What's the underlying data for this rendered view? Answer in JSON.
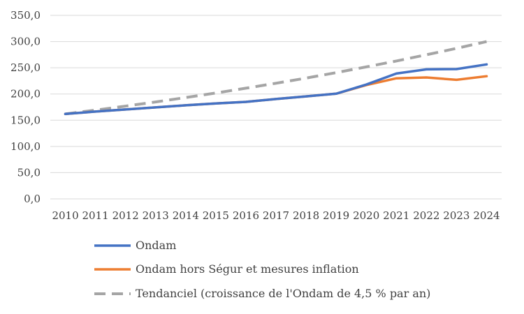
{
  "chart_data": {
    "type": "line",
    "title": "",
    "xlabel": "",
    "ylabel": "",
    "categories": [
      "2010",
      "2011",
      "2012",
      "2013",
      "2014",
      "2015",
      "2016",
      "2017",
      "2018",
      "2019",
      "2020",
      "2021",
      "2022",
      "2023",
      "2024"
    ],
    "ylim": [
      0,
      350
    ],
    "yticks": [
      0,
      50,
      100,
      150,
      200,
      250,
      300,
      350
    ],
    "ytick_labels": [
      "0,0",
      "50,0",
      "100,0",
      "150,0",
      "200,0",
      "250,0",
      "300,0",
      "350,0"
    ],
    "grid": "horizontal",
    "legend_position": "bottom",
    "series": [
      {
        "name": "Ondam",
        "color": "#4472C4",
        "style": "solid",
        "values": [
          162.0,
          166.5,
          170.5,
          174.5,
          178.5,
          182.0,
          185.0,
          190.5,
          195.5,
          200.5,
          218.0,
          239.0,
          247.0,
          247.5,
          256.5
        ]
      },
      {
        "name": "Ondam hors Ségur et mesures inflation",
        "color": "#ED7D31",
        "style": "solid",
        "values": [
          162.0,
          166.5,
          170.5,
          174.5,
          178.5,
          182.0,
          185.0,
          190.5,
          195.5,
          200.5,
          217.0,
          230.0,
          231.5,
          227.0,
          234.0
        ]
      },
      {
        "name": "Tendanciel (croissance de l'Ondam de 4,5 % par an)",
        "color": "#A5A5A5",
        "style": "dashed",
        "values": [
          162.0,
          169.3,
          176.9,
          184.9,
          193.2,
          201.9,
          211.0,
          220.5,
          230.4,
          240.8,
          251.6,
          262.9,
          274.8,
          287.1,
          300.0
        ]
      }
    ]
  }
}
